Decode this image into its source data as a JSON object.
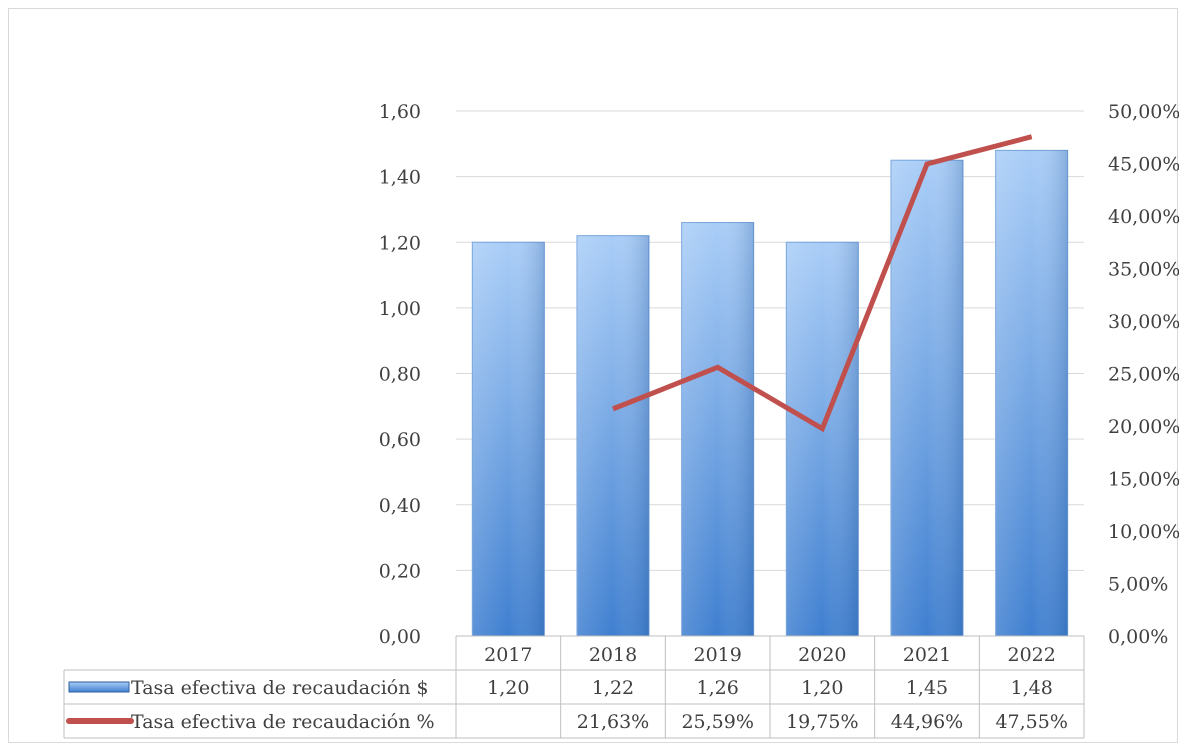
{
  "chart_data": {
    "type": "bar",
    "categories": [
      "2017",
      "2018",
      "2019",
      "2020",
      "2021",
      "2022"
    ],
    "series": [
      {
        "name": "Tasa efectiva de recaudación $",
        "type": "bar",
        "axis": "left",
        "values": [
          1.2,
          1.22,
          1.26,
          1.2,
          1.45,
          1.48
        ],
        "table_labels": [
          "1,20",
          "1,22",
          "1,26",
          "1,20",
          "1,45",
          "1,48"
        ],
        "color": "#5b9bd5"
      },
      {
        "name": "Tasa efectiva de recaudación %",
        "type": "line",
        "axis": "right",
        "values": [
          null,
          21.63,
          25.59,
          19.75,
          44.96,
          47.55
        ],
        "table_labels": [
          "",
          "21,63%",
          "25,59%",
          "19,75%",
          "44,96%",
          "47,55%"
        ],
        "color": "#c0504d"
      }
    ],
    "y_left": {
      "range": [
        0,
        1.6
      ],
      "ticks": [
        0,
        0.2,
        0.4,
        0.6,
        0.8,
        1.0,
        1.2,
        1.4,
        1.6
      ],
      "tick_labels": [
        "0,00",
        "0,20",
        "0,40",
        "0,60",
        "0,80",
        "1,00",
        "1,20",
        "1,40",
        "1,60"
      ]
    },
    "y_right": {
      "range": [
        0,
        50
      ],
      "ticks": [
        0,
        5,
        10,
        15,
        20,
        25,
        30,
        35,
        40,
        45,
        50
      ],
      "tick_labels": [
        "0,00%",
        "5,00%",
        "10,00%",
        "15,00%",
        "20,00%",
        "25,00%",
        "30,00%",
        "35,00%",
        "40,00%",
        "45,00%",
        "50,00%"
      ]
    },
    "grid": true,
    "legend": "data-table"
  }
}
